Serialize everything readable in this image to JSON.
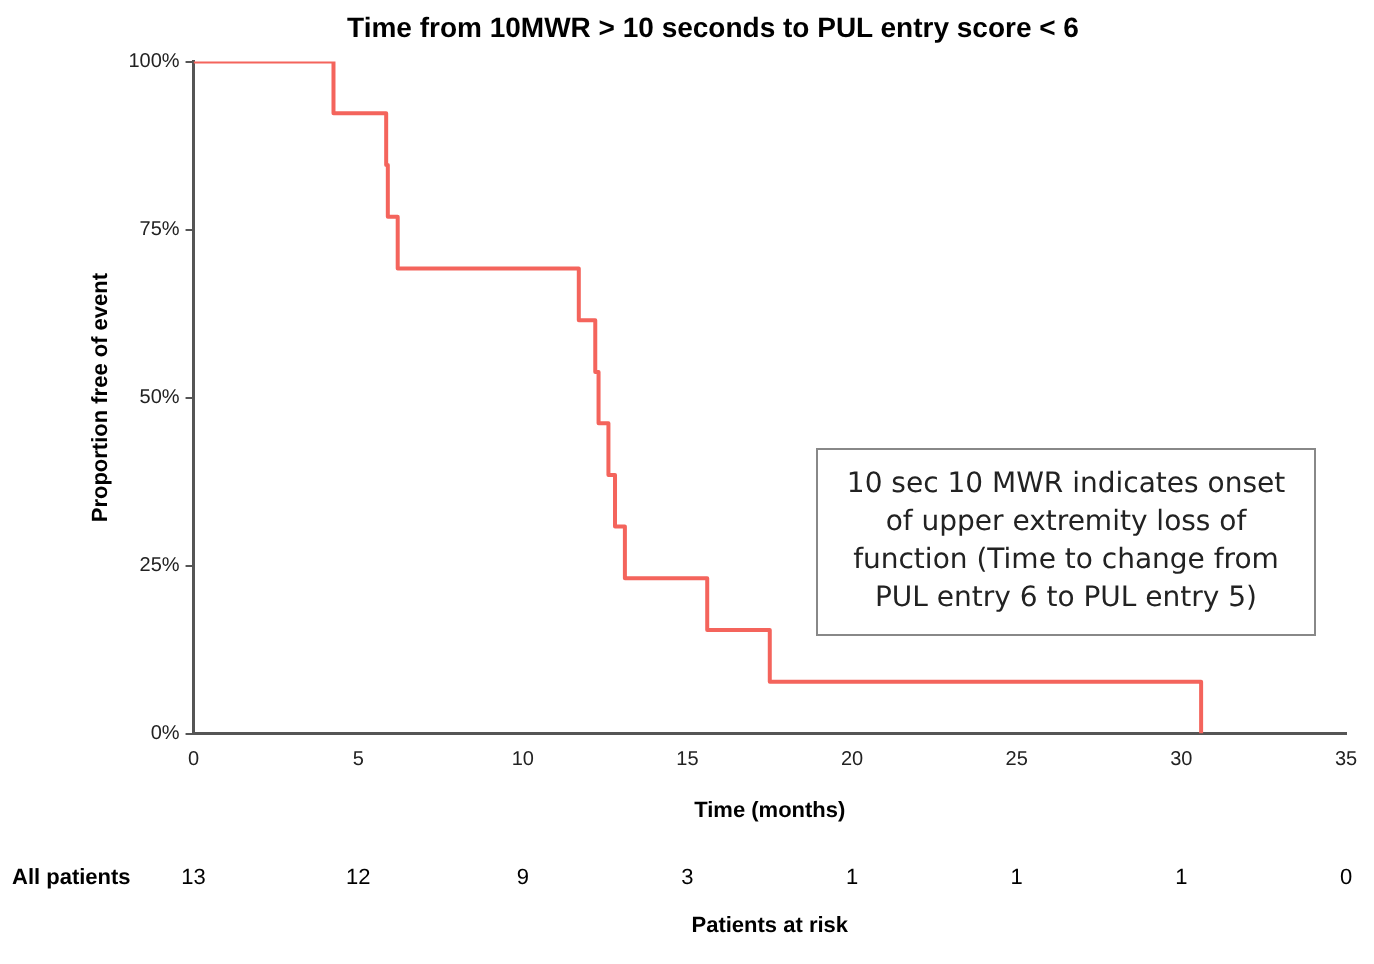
{
  "chart_data": {
    "type": "step",
    "title": "Time from 10MWR > 10 seconds to PUL entry score < 6",
    "xlabel": "Time (months)",
    "ylabel": "Proportion free of event",
    "x": [
      0,
      4.25,
      5.85,
      5.9,
      6.2,
      11.7,
      12.2,
      12.3,
      12.6,
      12.8,
      13.1,
      15.6,
      17.5,
      30.6
    ],
    "series": [
      {
        "color": "#f4645c",
        "values": [
          100,
          92.3,
          84.6,
          76.9,
          69.2,
          61.5,
          53.8,
          46.2,
          38.5,
          30.8,
          23.1,
          15.4,
          7.7,
          0
        ]
      }
    ],
    "xlim": [
      0,
      35
    ],
    "xticks": [
      0,
      5,
      10,
      15,
      20,
      25,
      30,
      35
    ],
    "ylim": [
      0,
      100
    ],
    "yticks": [
      {
        "value": 0,
        "label": "0%"
      },
      {
        "value": 25,
        "label": "25%"
      },
      {
        "value": 50,
        "label": "50%"
      },
      {
        "value": 75,
        "label": "75%"
      },
      {
        "value": 100,
        "label": "100%"
      }
    ],
    "grid": false,
    "legend": false,
    "marker": "none",
    "line_style": "solid",
    "annotations": [
      "All patients",
      "13",
      "12",
      "9",
      "3",
      "1",
      "1",
      "1",
      "0",
      "Patients at risk",
      "10 sec 10 MWR indicates onset of upper extremity loss of function (Time to change from PUL entry 6 to PUL entry 5)"
    ]
  }
}
